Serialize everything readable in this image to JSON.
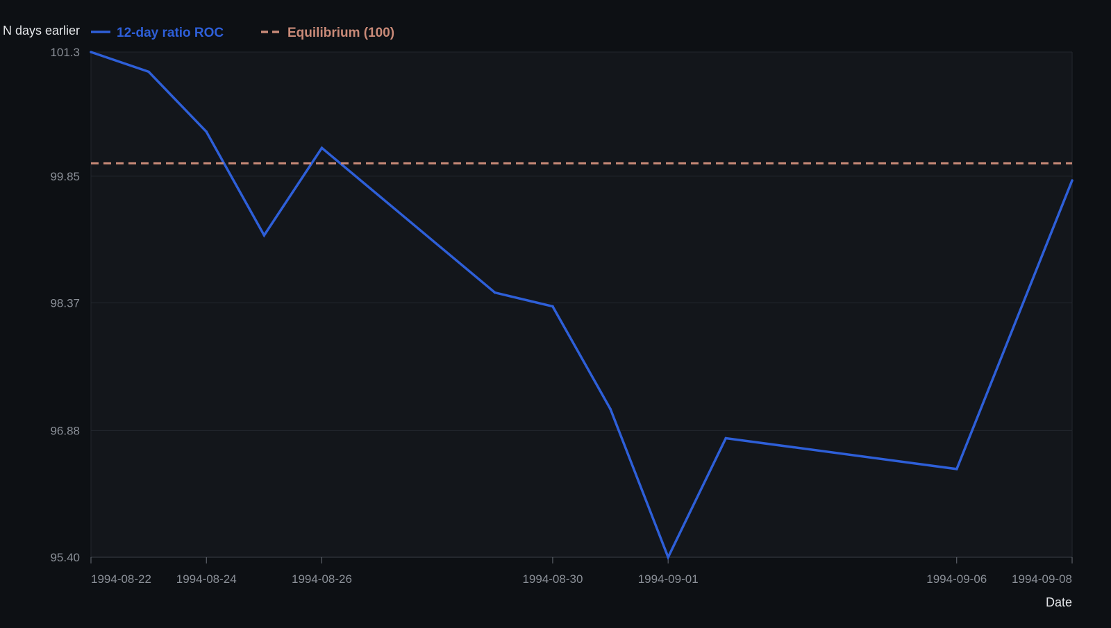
{
  "colors": {
    "background": "#0d1014",
    "plot_background": "#13161b",
    "series_line": "#2e5fd8",
    "equilibrium_line": "#c98a78",
    "gridline": "#23272e",
    "tick_text": "#8b9098",
    "axis_title_text": "#e3e5e8"
  },
  "chart_data": {
    "type": "line",
    "title": "",
    "xlabel": "Date",
    "ylabel": "N days earlier",
    "x_type": "date",
    "xlim": [
      "1994-08-22",
      "1994-09-08"
    ],
    "ylim": [
      95.4,
      101.3
    ],
    "y_ticks": [
      {
        "value": 95.4,
        "label": "95.40"
      },
      {
        "value": 96.88,
        "label": "96.88"
      },
      {
        "value": 98.37,
        "label": "98.37"
      },
      {
        "value": 99.85,
        "label": "99.85"
      },
      {
        "value": 101.3,
        "label": "101.3"
      }
    ],
    "x_ticks": [
      {
        "value": "1994-08-22",
        "label": "1994-08-22"
      },
      {
        "value": "1994-08-24",
        "label": "1994-08-24"
      },
      {
        "value": "1994-08-26",
        "label": "1994-08-26"
      },
      {
        "value": "1994-08-30",
        "label": "1994-08-30"
      },
      {
        "value": "1994-09-01",
        "label": "1994-09-01"
      },
      {
        "value": "1994-09-06",
        "label": "1994-09-06"
      },
      {
        "value": "1994-09-08",
        "label": "1994-09-08"
      }
    ],
    "grid": true,
    "legend_position": "top-left",
    "series": [
      {
        "name": "12-day ratio ROC",
        "style": "solid",
        "x": [
          "1994-08-22",
          "1994-08-23",
          "1994-08-24",
          "1994-08-25",
          "1994-08-26",
          "1994-08-29",
          "1994-08-30",
          "1994-08-31",
          "1994-09-01",
          "1994-09-02",
          "1994-09-06",
          "1994-09-08"
        ],
        "y": [
          101.3,
          101.07,
          100.37,
          99.16,
          100.18,
          98.49,
          98.33,
          97.13,
          95.4,
          96.79,
          96.43,
          99.8
        ]
      },
      {
        "name": "Equilibrium (100)",
        "style": "dashed",
        "x": [
          "1994-08-22",
          "1994-09-08"
        ],
        "y": [
          100,
          100
        ]
      }
    ]
  }
}
